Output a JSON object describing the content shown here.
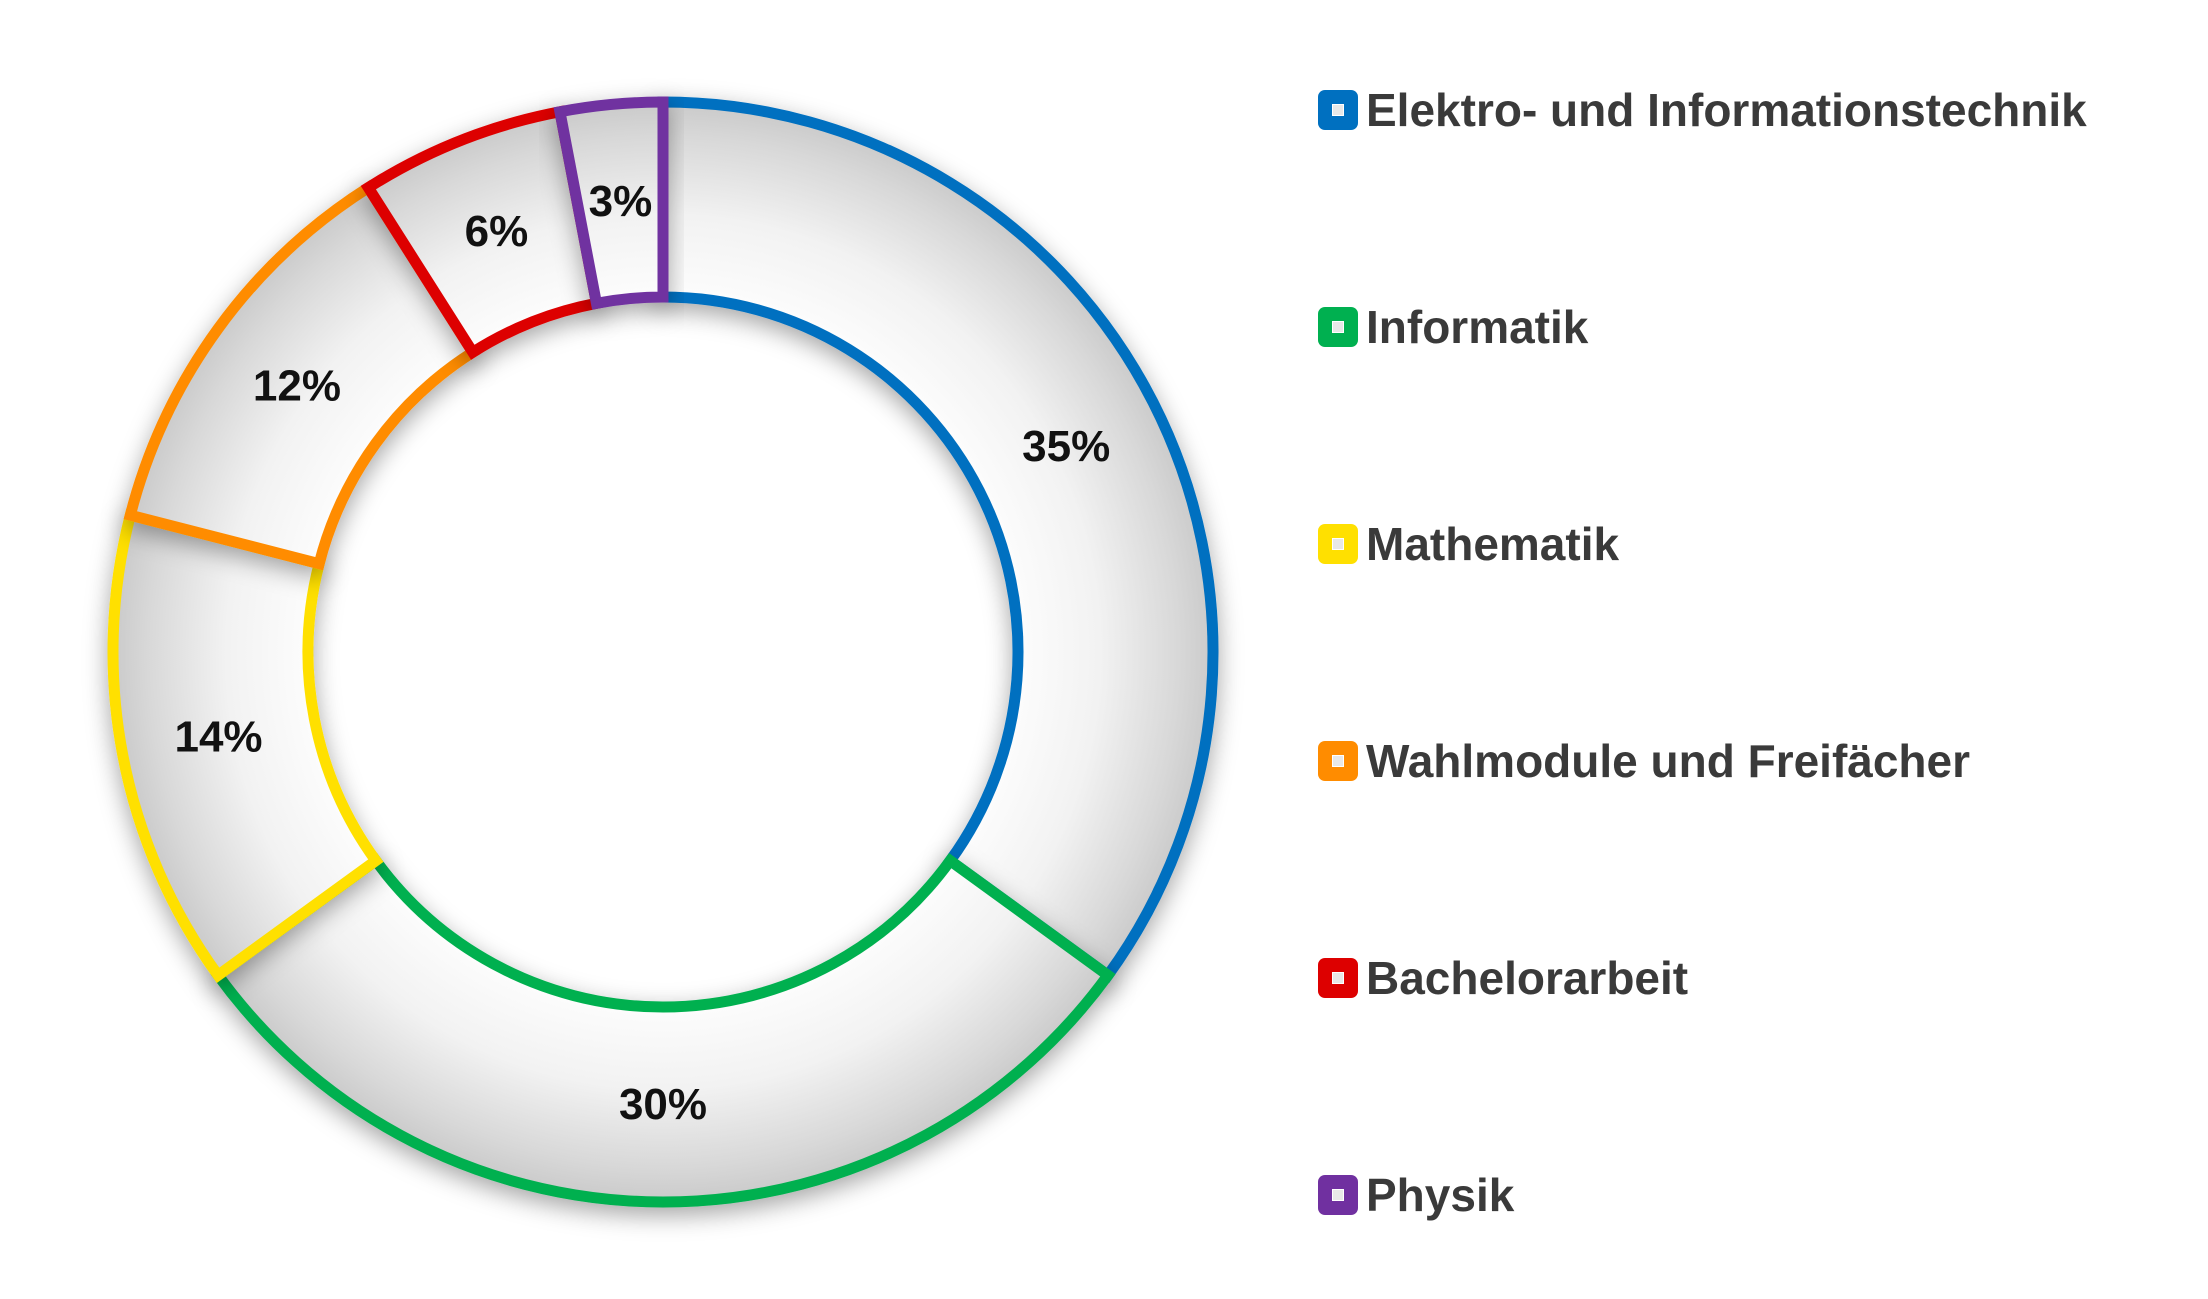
{
  "chart_data": {
    "type": "pie",
    "style": "donut",
    "start_angle_deg": 0,
    "direction": "clockwise",
    "legend_position": "right",
    "slices": [
      {
        "name": "Elektro- und Informationstechnik",
        "value": 35,
        "label": "35%",
        "color": "#0070c0"
      },
      {
        "name": "Informatik",
        "value": 30,
        "label": "30%",
        "color": "#00b050"
      },
      {
        "name": "Mathematik",
        "value": 14,
        "label": "14%",
        "color": "#ffe000"
      },
      {
        "name": "Wahlmodule und Freifächer",
        "value": 12,
        "label": "12%",
        "color": "#ff8c00"
      },
      {
        "name": "Bachelorarbeit",
        "value": 6,
        "label": "6%",
        "color": "#dd0000"
      },
      {
        "name": "Physik",
        "value": 3,
        "label": "3%",
        "color": "#7030a0"
      }
    ]
  }
}
